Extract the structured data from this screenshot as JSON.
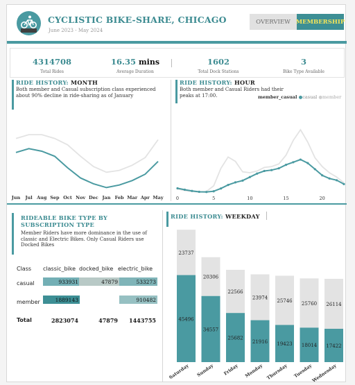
{
  "header": {
    "title": "CYCLISTIC BIKE-SHARE, CHICAGO",
    "subtitle": "June 2023 - May 2024",
    "logo_icon": "bicycle-icon"
  },
  "tabs": [
    {
      "label": "OVERVIEW",
      "active": false
    },
    {
      "label": "MEMBERSHIP",
      "active": true
    }
  ],
  "kpis": [
    {
      "value": "4314708",
      "unit": "",
      "label": "Total Rides"
    },
    {
      "value": "16.35",
      "unit": "mins",
      "label": "Average Duration"
    },
    {
      "value": "1602",
      "unit": "",
      "label": "Total Dock Stations"
    },
    {
      "value": "3",
      "unit": "",
      "label": "Bike Type Available"
    }
  ],
  "month_section": {
    "title_prefix": "RIDE HISTORY:",
    "title_rest": "MONTH",
    "description": "Both member and Casual subscription class experienced about 90% decline in ride-sharing as of January"
  },
  "hour_section": {
    "title_prefix": "RIDE HISTORY:",
    "title_rest": "HOUR",
    "description": "Both member and Casual Riders had their peaks at 17:00.",
    "legend_title": "member_casual",
    "legend_items": [
      "casual",
      "member"
    ]
  },
  "biketype_section": {
    "title": "RIDEABLE BIKE TYPE BY SUBSCRIPTION TYPE",
    "description": "Member Riders have more dominance in the use of classic and Electric Bikes. Only Casual Riders use Docked Bikes"
  },
  "weekday_section": {
    "title_prefix": "RIDE HISTORY:",
    "title_rest": "WEEKDAY"
  },
  "table": {
    "corner": "Class",
    "columns": [
      "classic_bike",
      "docked_bike",
      "electric_bike"
    ],
    "rows": [
      {
        "label": "casual",
        "values": [
          "933931",
          "47879",
          "533273"
        ]
      },
      {
        "label": "member",
        "values": [
          "1889143",
          "",
          "910482"
        ]
      }
    ],
    "total_label": "Total",
    "totals": [
      "2823074",
      "47879",
      "1443755"
    ]
  },
  "chart_data": [
    {
      "type": "line",
      "name": "month",
      "categories": [
        "Jun",
        "Jul",
        "Aug",
        "Sep",
        "Oct",
        "Nov",
        "Dec",
        "Jan",
        "Feb",
        "Mar",
        "Apr",
        "May"
      ],
      "series": [
        {
          "name": "casual",
          "values": [
            300000,
            330000,
            310000,
            270000,
            180000,
            100000,
            55000,
            25000,
            45000,
            80000,
            130000,
            230000
          ]
        },
        {
          "name": "member",
          "values": [
            410000,
            440000,
            440000,
            410000,
            360000,
            270000,
            190000,
            145000,
            160000,
            200000,
            260000,
            400000
          ]
        }
      ],
      "ylim": [
        0,
        560000
      ],
      "grid": false,
      "colors": {
        "member": "#e3e3e3",
        "casual": "#4a9aa1"
      }
    },
    {
      "type": "line",
      "name": "hour",
      "x": [
        0,
        1,
        2,
        3,
        4,
        5,
        6,
        7,
        8,
        9,
        10,
        11,
        12,
        13,
        14,
        15,
        16,
        17,
        18,
        19,
        20,
        21,
        22,
        23
      ],
      "xticks": [
        "0",
        "5",
        "10",
        "15",
        "20"
      ],
      "series": [
        {
          "name": "casual",
          "values": [
            26000,
            18000,
            11000,
            6000,
            5000,
            9000,
            25000,
            45000,
            60000,
            70000,
            90000,
            110000,
            125000,
            130000,
            140000,
            160000,
            175000,
            190000,
            170000,
            135000,
            100000,
            82000,
            72000,
            50000
          ]
        },
        {
          "name": "member",
          "values": [
            22000,
            13000,
            8000,
            4000,
            8000,
            40000,
            140000,
            205000,
            180000,
            120000,
            115000,
            125000,
            145000,
            150000,
            165000,
            215000,
            300000,
            360000,
            290000,
            200000,
            150000,
            115000,
            90000,
            58000
          ]
        }
      ],
      "ylim": [
        0,
        420000
      ],
      "legend": "top-right",
      "colors": {
        "member": "#e3e3e3",
        "casual": "#4a9aa1"
      }
    },
    {
      "type": "bar",
      "name": "weekday",
      "stacked": true,
      "categories": [
        "Saturday",
        "Sunday",
        "Friday",
        "Monday",
        "Thursday",
        "Tuesday",
        "Wednesday"
      ],
      "series": [
        {
          "name": "casual",
          "values": [
            45496,
            34557,
            25682,
            21916,
            19423,
            18014,
            17422
          ]
        },
        {
          "name": "member",
          "values": [
            23737,
            20306,
            22566,
            23974,
            25746,
            25760,
            26114
          ]
        }
      ],
      "ylim": [
        0,
        70000
      ],
      "colors": {
        "member": "#e3e3e3",
        "casual": "#4a9aa1"
      }
    }
  ]
}
